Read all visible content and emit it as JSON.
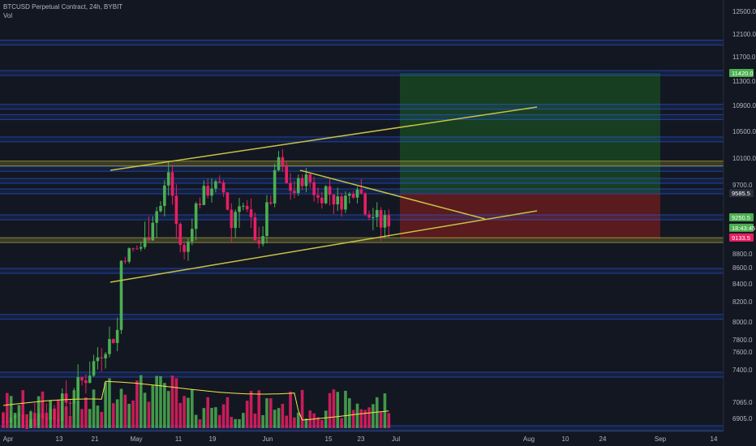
{
  "header": {
    "symbol_line": "BTCUSD Perpetual Contract, 24h, BYBIT",
    "indicator": "Vol"
  },
  "colors": {
    "background": "#131722",
    "up": "#4caf50",
    "down": "#e91e63",
    "axis_text": "#b2b5be",
    "level_band": "#2962ff",
    "support_band": "#a09a3a",
    "trendline": "#c9c245",
    "ma_line": "#f4e54a",
    "tp_zone": "#1b5e20",
    "sl_zone": "#7f1d1d"
  },
  "chart_data": {
    "type": "candlestick",
    "y_axis_ticks": [
      "12500.0",
      "12100.0",
      "11700.0",
      "11300.0",
      "10900.0",
      "10500.0",
      "10100.0",
      "9700.0",
      "8800.0",
      "8600.0",
      "8400.0",
      "8200.0",
      "8000.0",
      "7800.0",
      "7600.0",
      "7400.0",
      "7065.0",
      "6905.0"
    ],
    "x_axis_ticks": [
      "Apr",
      "13",
      "21",
      "May",
      "11",
      "19",
      "Jun",
      "15",
      "23",
      "Jul",
      "Aug",
      "10",
      "24",
      "Sep",
      "14"
    ],
    "price_tags": [
      {
        "label": "11420.0",
        "color": "#4caf50",
        "price": 11420
      },
      {
        "label": "9585.5",
        "color": "#2a2e39",
        "price": 9585.5
      },
      {
        "label": "9250.5",
        "color": "#4caf50",
        "price": 9250.5
      },
      {
        "label": "18:43:45",
        "color": "#4caf50",
        "price": 9190
      },
      {
        "label": "9133.5",
        "color": "#e91e63",
        "price": 9133.5
      }
    ],
    "ylim": [
      6820,
      12620
    ],
    "position": {
      "take_profit": 11420,
      "entry": 9585.5,
      "stop": 9110
    },
    "horizontal_levels": [
      11950,
      11420,
      10880,
      10720,
      10380,
      9940,
      9760,
      9610,
      9250,
      8560,
      8050,
      7350,
      6820
    ],
    "support_band_levels": [
      10020,
      9080
    ]
  }
}
